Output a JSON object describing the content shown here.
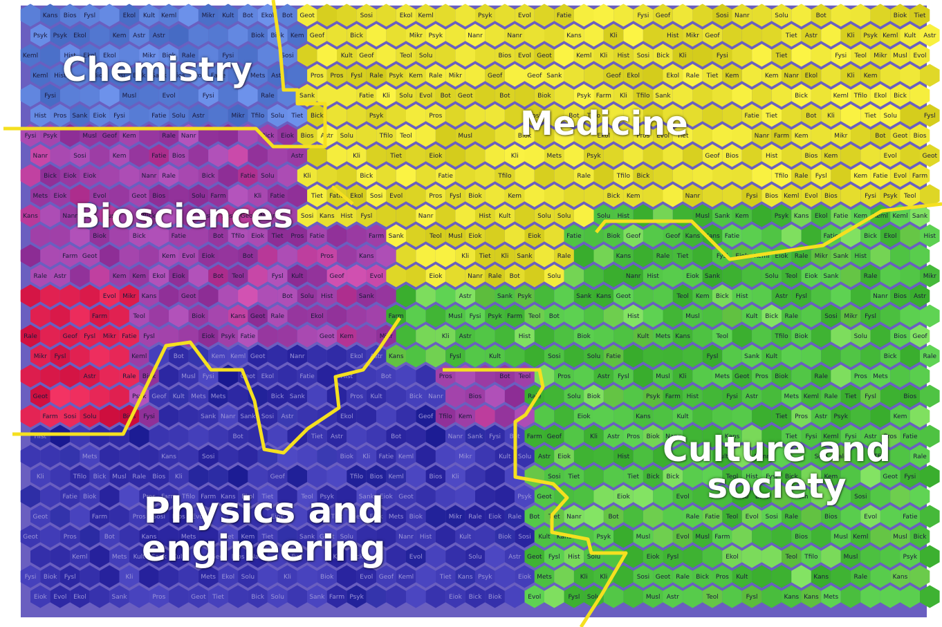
{
  "map": {
    "regions": [
      {
        "id": "chemistry",
        "name": "Chemistry",
        "color": "#5a7fd8"
      },
      {
        "id": "medicine",
        "name": "Medicine",
        "color": "#e8e030"
      },
      {
        "id": "biosciences",
        "name": "Biosciences",
        "color": "#a040a8"
      },
      {
        "id": "physics",
        "name": "Physics and engineering",
        "color": "#3a35b0"
      },
      {
        "id": "culture",
        "name": "Culture and society",
        "color": "#4cc040"
      }
    ],
    "labels": {
      "chemistry": "Chemistry",
      "medicine": "Medicine",
      "biosciences": "Biosciences",
      "physics_line1": "Physics and",
      "physics_line2": "engineering",
      "culture_line1": "Culture and",
      "culture_line2": "society"
    },
    "boundary_color": "#f5e020",
    "accent_colors": {
      "red_cluster": "#e02050",
      "magenta": "#c040a0",
      "deep_blue": "#2828a0",
      "light_green": "#70d050"
    },
    "cell_tokens": [
      "Kem",
      "Keml",
      "Biok",
      "Bick",
      "Solu",
      "Bot",
      "Eiok",
      "Ekol",
      "Evol",
      "Fysl",
      "Fysi",
      "Geot",
      "Geof",
      "Astr",
      "Kans",
      "Kli",
      "Psyk",
      "Hist",
      "Kult",
      "Sosi",
      "Teol",
      "Tfilo",
      "Musl",
      "Rale",
      "Pros",
      "Fatie",
      "Sank",
      "Tiet",
      "Mets",
      "Bios",
      "Farm",
      "Mikr",
      "Nanr"
    ]
  }
}
